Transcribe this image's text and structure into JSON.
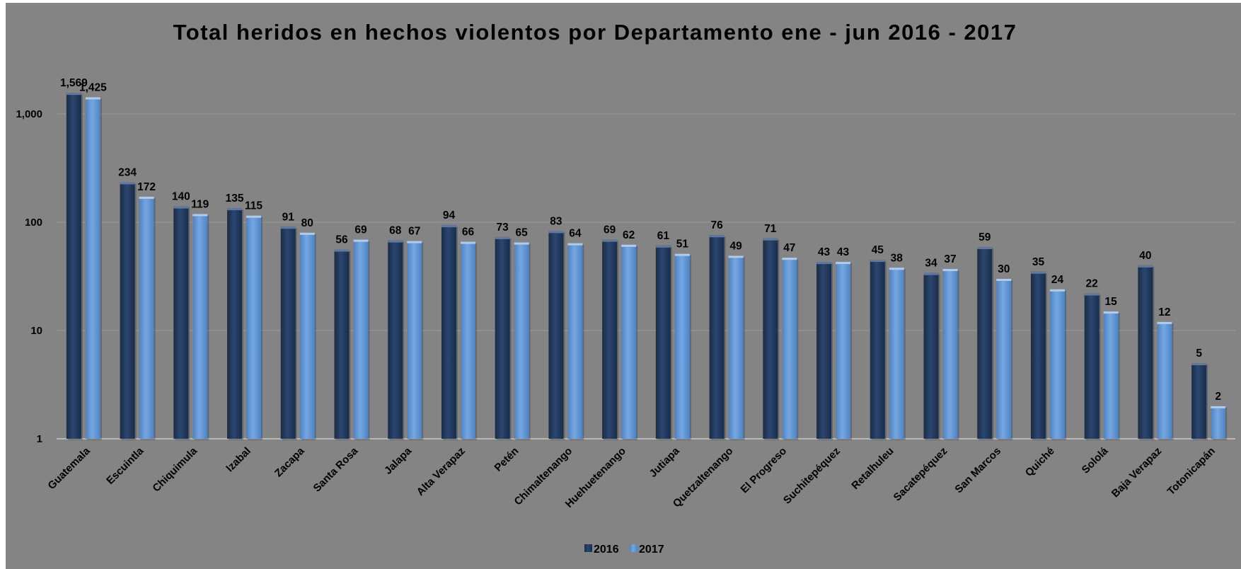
{
  "chart_data": {
    "type": "bar",
    "title": "Total heridos en hechos violentos por Departamento ene - jun 2016 - 2017",
    "xlabel": "",
    "ylabel": "",
    "scale": "log",
    "ylim": [
      1,
      2000
    ],
    "y_ticks": [
      1,
      10,
      100,
      1000
    ],
    "y_tick_labels": [
      "1",
      "10",
      "100",
      "1,000"
    ],
    "grid": true,
    "legend_position": "bottom",
    "categories": [
      "Guatemala",
      "Escuintla",
      "Chiquimula",
      "Izabal",
      "Zacapa",
      "Santa Rosa",
      "Jalapa",
      "Alta Verapaz",
      "Petén",
      "Chimaltenango",
      "Huehuetenango",
      "Jutiapa",
      "Quetzaltenango",
      "El Progreso",
      "Suchitepéquez",
      "Retalhuleu",
      "Sacatepéquez",
      "San Marcos",
      "Quiché",
      "Sololá",
      "Baja Verapaz",
      "Totonicapán"
    ],
    "series": [
      {
        "name": "2016",
        "color": "#243b60",
        "values": [
          1569,
          234,
          140,
          135,
          91,
          56,
          68,
          94,
          73,
          83,
          69,
          61,
          76,
          71,
          43,
          45,
          34,
          59,
          35,
          22,
          40,
          5
        ],
        "labels": [
          "1,569",
          "234",
          "140",
          "135",
          "91",
          "56",
          "68",
          "94",
          "73",
          "83",
          "69",
          "61",
          "76",
          "71",
          "43",
          "45",
          "34",
          "59",
          "35",
          "22",
          "40",
          "5"
        ]
      },
      {
        "name": "2017",
        "color": "#5a8fcf",
        "values": [
          1425,
          172,
          119,
          115,
          80,
          69,
          67,
          66,
          65,
          64,
          62,
          51,
          49,
          47,
          43,
          38,
          37,
          30,
          24,
          15,
          12,
          2
        ],
        "labels": [
          "1,425",
          "172",
          "119",
          "115",
          "80",
          "69",
          "67",
          "66",
          "65",
          "64",
          "62",
          "51",
          "49",
          "47",
          "43",
          "38",
          "37",
          "30",
          "24",
          "15",
          "12",
          "2"
        ]
      }
    ]
  }
}
